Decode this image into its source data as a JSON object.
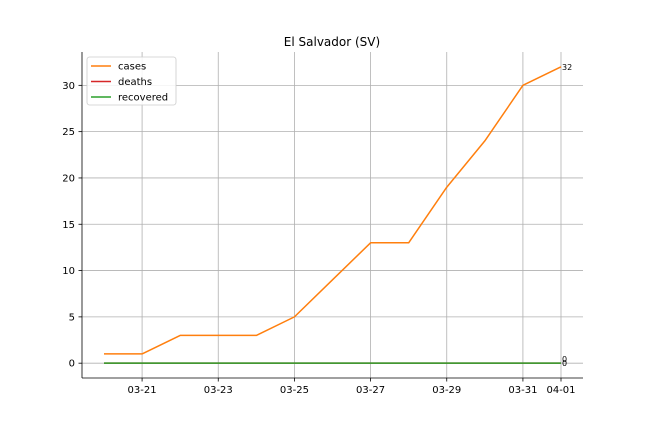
{
  "chart_data": {
    "type": "line",
    "title": "El Salvador (SV)",
    "xlabel": "",
    "ylabel": "",
    "x": [
      "03-20",
      "03-21",
      "03-22",
      "03-23",
      "03-24",
      "03-25",
      "03-26",
      "03-27",
      "03-28",
      "03-29",
      "03-30",
      "03-31",
      "04-01"
    ],
    "x_tick_labels": [
      "03-21",
      "03-23",
      "03-25",
      "03-27",
      "03-29",
      "03-31",
      "04-01"
    ],
    "ylim": [
      -1.6,
      33.6
    ],
    "y_ticks": [
      0,
      5,
      10,
      15,
      20,
      25,
      30
    ],
    "grid": true,
    "legend_position": "top-left",
    "series": [
      {
        "name": "cases",
        "color": "#ff7f0e",
        "values": [
          1,
          1,
          3,
          3,
          3,
          5,
          9,
          13,
          13,
          19,
          24,
          30,
          32
        ]
      },
      {
        "name": "deaths",
        "color": "#d62728",
        "values": [
          0,
          0,
          0,
          0,
          0,
          0,
          0,
          0,
          0,
          0,
          0,
          0,
          0
        ]
      },
      {
        "name": "recovered",
        "color": "#2ca02c",
        "values": [
          0,
          0,
          0,
          0,
          0,
          0,
          0,
          0,
          0,
          0,
          0,
          0,
          0
        ]
      }
    ],
    "end_labels": [
      "32",
      "0",
      "0"
    ]
  }
}
